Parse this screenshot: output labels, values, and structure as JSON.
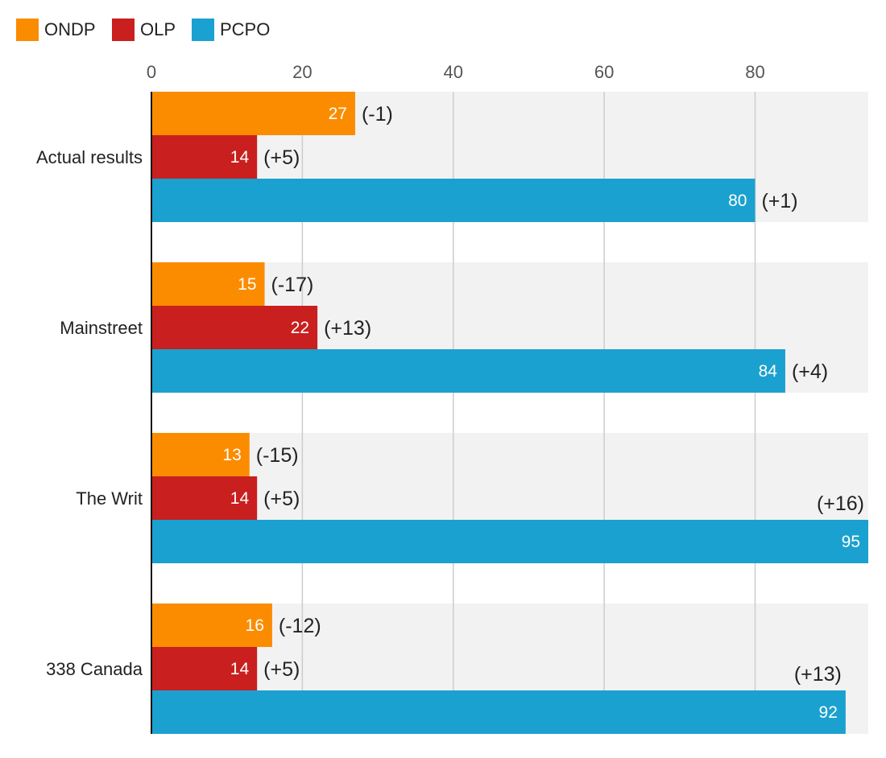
{
  "chart_data": {
    "type": "bar",
    "orientation": "horizontal",
    "title": "",
    "xlabel": "",
    "ylabel": "",
    "xlim": [
      0,
      95
    ],
    "x_ticks": [
      "0",
      "20",
      "40",
      "60",
      "80"
    ],
    "grid": true,
    "legend_position": "top-left",
    "categories": [
      "Actual results",
      "Mainstreet",
      "The Writ",
      "338 Canada"
    ],
    "series": [
      {
        "name": "ONDP",
        "color": "#FB8C00",
        "values": [
          27,
          15,
          13,
          16
        ],
        "changes": [
          "(-1)",
          "(-17)",
          "(-15)",
          "(-12)"
        ]
      },
      {
        "name": "OLP",
        "color": "#C91F1F",
        "values": [
          14,
          22,
          14,
          14
        ],
        "changes": [
          "(+5)",
          "(+13)",
          "(+5)",
          "(+5)"
        ]
      },
      {
        "name": "PCPO",
        "color": "#1BA1CF",
        "values": [
          80,
          84,
          95,
          92
        ],
        "changes": [
          "(+1)",
          "(+4)",
          "(+16)",
          "(+13)"
        ]
      }
    ]
  }
}
